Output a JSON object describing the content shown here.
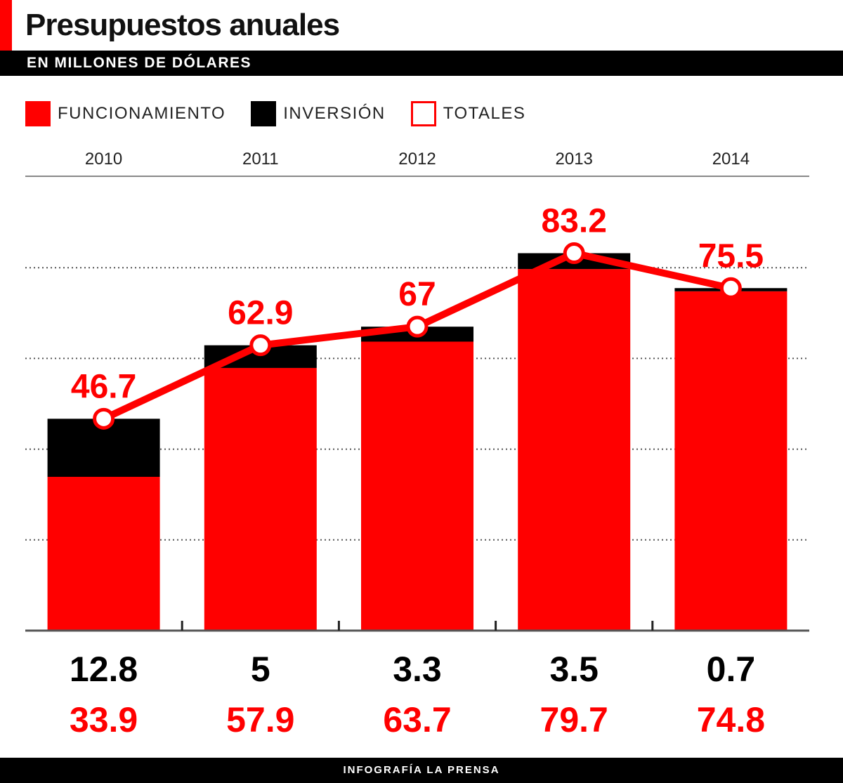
{
  "title": "Presupuestos anuales",
  "subtitle": "EN MILLONES DE DÓLARES",
  "footer": "INFOGRAFÍA LA PRENSA",
  "colors": {
    "funcionamiento": "#ff0000",
    "inversion": "#000000",
    "totales": "#ff0000"
  },
  "legend": [
    {
      "label": "FUNCIONAMIENTO",
      "swatch": "solid",
      "color": "#ff0000"
    },
    {
      "label": "INVERSIÓN",
      "swatch": "solid",
      "color": "#000000"
    },
    {
      "label": "TOTALES",
      "swatch": "outline",
      "color": "#ff0000"
    }
  ],
  "chart_data": {
    "type": "bar",
    "title": "Presupuestos anuales",
    "subtitle": "EN MILLONES DE DÓLARES",
    "stacked": true,
    "categories": [
      "2010",
      "2011",
      "2012",
      "2013",
      "2014"
    ],
    "series": [
      {
        "name": "FUNCIONAMIENTO",
        "color": "#ff0000",
        "values": [
          33.9,
          57.9,
          63.7,
          79.7,
          74.8
        ]
      },
      {
        "name": "INVERSIÓN",
        "color": "#000000",
        "values": [
          12.8,
          5,
          3.3,
          3.5,
          0.7
        ]
      }
    ],
    "line_series": {
      "name": "TOTALES",
      "color": "#ff0000",
      "values": [
        46.7,
        62.9,
        67,
        83.2,
        75.5
      ]
    },
    "total_labels": [
      "46.7",
      "62.9",
      "67",
      "83.2",
      "75.5"
    ],
    "inversion_labels": [
      "12.8",
      "5",
      "3.3",
      "3.5",
      "0.7"
    ],
    "funcionamiento_labels": [
      "33.9",
      "57.9",
      "63.7",
      "79.7",
      "74.8"
    ],
    "ylim": [
      0,
      100
    ],
    "gridlines": [
      20,
      40,
      60,
      80
    ],
    "xlabel": "",
    "ylabel": ""
  }
}
